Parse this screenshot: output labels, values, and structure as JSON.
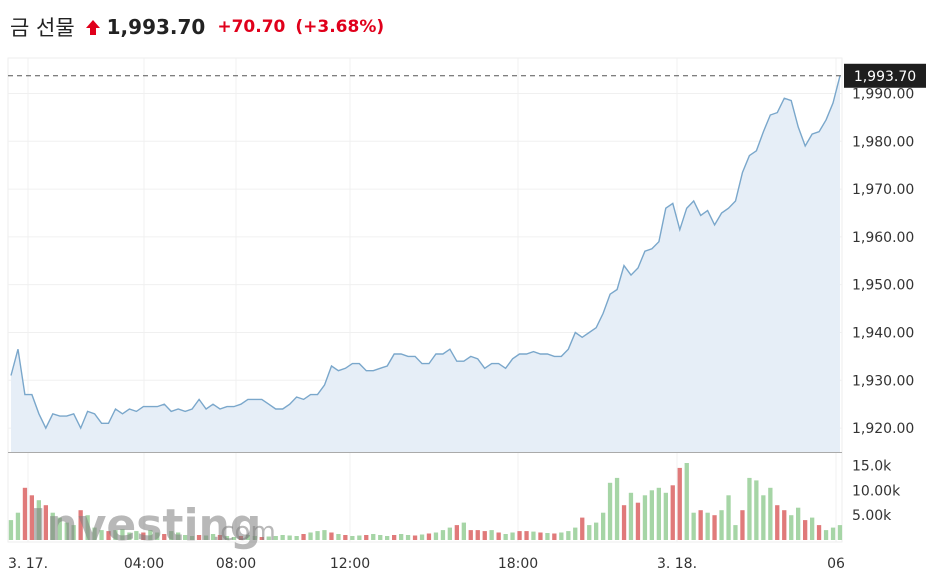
{
  "header": {
    "title": "금 선물",
    "price": "1,993.70",
    "change": "+70.70",
    "change_pct": "(+3.68%)",
    "direction_icon": "arrow-up-icon",
    "up_color": "#e0001b"
  },
  "watermark": {
    "brand": "Investing",
    "suffix": ".com"
  },
  "chart_data": {
    "type": "area",
    "title": "",
    "xlabel": "",
    "ylabel": "",
    "ylim": [
      1915,
      1997
    ],
    "y_ticks": [
      "1,920.00",
      "1,930.00",
      "1,940.00",
      "1,950.00",
      "1,960.00",
      "1,970.00",
      "1,980.00",
      "1,990.00"
    ],
    "y_tick_values": [
      1920,
      1930,
      1940,
      1950,
      1960,
      1970,
      1980,
      1990
    ],
    "x_ticks": [
      "3. 17.",
      "04:00",
      "08:00",
      "12:00",
      "18:00",
      "3. 18.",
      "06"
    ],
    "last_price_label": "1,993.70",
    "last_price": 1993.7,
    "line_color": "#7aa7cb",
    "fill_color": "#e6eef7",
    "price": [
      1931,
      1936.5,
      1927,
      1927,
      1923,
      1920,
      1923,
      1922.5,
      1922.5,
      1923,
      1920,
      1923.5,
      1923,
      1921,
      1921,
      1924,
      1923,
      1924,
      1923.5,
      1924.5,
      1924.5,
      1924.5,
      1925,
      1923.5,
      1924,
      1923.5,
      1924,
      1926,
      1924,
      1925,
      1924,
      1924.5,
      1924.5,
      1925,
      1926,
      1926,
      1926,
      1925,
      1924,
      1924,
      1925,
      1926.5,
      1926,
      1927,
      1927,
      1929,
      1933,
      1932,
      1932.5,
      1933.5,
      1933.5,
      1932,
      1932,
      1932.5,
      1933,
      1935.5,
      1935.5,
      1935,
      1935,
      1933.5,
      1933.5,
      1935.5,
      1935.5,
      1936.5,
      1934,
      1934,
      1935,
      1934.5,
      1932.5,
      1933.5,
      1933.5,
      1932.5,
      1934.5,
      1935.5,
      1935.5,
      1936,
      1935.5,
      1935.5,
      1935,
      1935,
      1936.5,
      1940,
      1939,
      1940,
      1941,
      1944,
      1948,
      1949,
      1954,
      1952,
      1953.5,
      1957,
      1957.5,
      1959,
      1966,
      1967,
      1961.5,
      1966,
      1967.5,
      1964.5,
      1965.5,
      1962.5,
      1965,
      1966,
      1967.5,
      1973.5,
      1977,
      1978,
      1982,
      1985.5,
      1986,
      1989,
      1988.5,
      1983,
      1979,
      1981.5,
      1982,
      1984.5,
      1988,
      1993.7
    ],
    "volume_yticks": [
      "15.0k",
      "10.00k",
      "5.00k"
    ],
    "volume_ytick_values": [
      15000,
      10000,
      5000
    ],
    "volume_ylim": [
      0,
      16500
    ],
    "volume_up_color": "#a6d5a6",
    "volume_down_color": "#e07a7a",
    "volume": [
      4000,
      5500,
      10500,
      9000,
      8000,
      7000,
      5500,
      4500,
      3500,
      3000,
      6000,
      5000,
      2500,
      2000,
      1800,
      2000,
      2200,
      1500,
      1800,
      1500,
      2000,
      1500,
      1200,
      1800,
      1500,
      1000,
      800,
      1000,
      900,
      1200,
      1000,
      800,
      600,
      800,
      1000,
      800,
      600,
      700,
      800,
      1000,
      900,
      800,
      1200,
      1500,
      1800,
      2000,
      1500,
      1200,
      1000,
      800,
      900,
      1000,
      1200,
      1000,
      800,
      1000,
      1200,
      1000,
      900,
      1100,
      1300,
      1500,
      2000,
      2500,
      3000,
      3500,
      2000,
      2000,
      1800,
      2000,
      1500,
      1200,
      1500,
      1800,
      1800,
      1700,
      1500,
      1400,
      1300,
      1500,
      1800,
      2500,
      4500,
      3000,
      3500,
      5500,
      11500,
      12500,
      7000,
      9500,
      7500,
      9000,
      10000,
      10500,
      9500,
      11000,
      14500,
      15500,
      5500,
      6000,
      5500,
      5000,
      6000,
      9000,
      3000,
      6000,
      12500,
      12000,
      9000,
      10500,
      7000,
      6000,
      5000,
      6500,
      4000,
      4500,
      3000,
      2000,
      2500,
      3000
    ],
    "volume_dir": [
      "u",
      "u",
      "d",
      "d",
      "u",
      "d",
      "u",
      "u",
      "u",
      "u",
      "d",
      "u",
      "u",
      "u",
      "d",
      "u",
      "u",
      "u",
      "u",
      "d",
      "u",
      "u",
      "d",
      "u",
      "u",
      "u",
      "u",
      "d",
      "u",
      "u",
      "d",
      "u",
      "u",
      "d",
      "u",
      "u",
      "d",
      "u",
      "u",
      "u",
      "u",
      "u",
      "d",
      "u",
      "u",
      "u",
      "d",
      "u",
      "d",
      "u",
      "u",
      "d",
      "u",
      "u",
      "u",
      "d",
      "u",
      "u",
      "d",
      "u",
      "d",
      "u",
      "u",
      "u",
      "d",
      "u",
      "d",
      "d",
      "d",
      "u",
      "d",
      "u",
      "u",
      "d",
      "d",
      "u",
      "d",
      "u",
      "d",
      "u",
      "u",
      "u",
      "d",
      "u",
      "u",
      "u",
      "u",
      "u",
      "d",
      "u",
      "d",
      "u",
      "u",
      "u",
      "u",
      "d",
      "d",
      "u",
      "u",
      "d",
      "u",
      "d",
      "u",
      "u",
      "u",
      "d",
      "u",
      "u",
      "u",
      "u",
      "d",
      "d",
      "u",
      "u",
      "d",
      "u",
      "d",
      "u",
      "u",
      "u"
    ]
  }
}
